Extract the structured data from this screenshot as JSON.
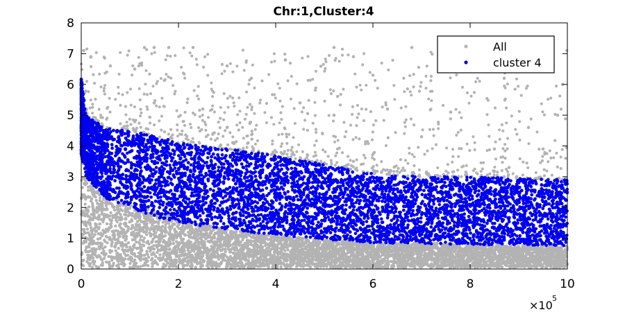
{
  "chart_data": {
    "type": "scatter",
    "title": "Chr:1,Cluster:4",
    "xlabel": "",
    "ylabel": "",
    "xlim": [
      0,
      1000000
    ],
    "ylim": [
      0,
      8
    ],
    "x_exponent_label": "×10",
    "x_exponent_power": "5",
    "x_ticks": [
      {
        "value": 0,
        "label": "0"
      },
      {
        "value": 200000,
        "label": "2"
      },
      {
        "value": 400000,
        "label": "4"
      },
      {
        "value": 600000,
        "label": "6"
      },
      {
        "value": 800000,
        "label": "8"
      },
      {
        "value": 1000000,
        "label": "10"
      }
    ],
    "y_ticks": [
      {
        "value": 0,
        "label": "0"
      },
      {
        "value": 1,
        "label": "1"
      },
      {
        "value": 2,
        "label": "2"
      },
      {
        "value": 3,
        "label": "3"
      },
      {
        "value": 4,
        "label": "4"
      },
      {
        "value": 5,
        "label": "5"
      },
      {
        "value": 6,
        "label": "6"
      },
      {
        "value": 7,
        "label": "7"
      },
      {
        "value": 8,
        "label": "8"
      }
    ],
    "grid": false,
    "legend_position": "top-right",
    "series": [
      {
        "name": "All",
        "color": "#b3b3b3",
        "description_points": [
          [
            5000,
            7.1
          ],
          [
            20000,
            6.9
          ],
          [
            60000,
            6.6
          ],
          [
            110000,
            6.5
          ],
          [
            130000,
            7.2
          ],
          [
            150000,
            7.2
          ],
          [
            180000,
            7.2
          ],
          [
            230000,
            7.2
          ],
          [
            300000,
            6.6
          ],
          [
            350000,
            6.2
          ],
          [
            420000,
            6.8
          ],
          [
            520000,
            7.2
          ],
          [
            560000,
            6.9
          ],
          [
            600000,
            6.3
          ],
          [
            680000,
            7.2
          ],
          [
            740000,
            7.2
          ],
          [
            800000,
            6.5
          ],
          [
            870000,
            6.2
          ],
          [
            990000,
            6.0
          ],
          [
            150000,
            5.4
          ],
          [
            250000,
            5.2
          ],
          [
            450000,
            5.4
          ],
          [
            520000,
            5.0
          ],
          [
            630000,
            5.2
          ],
          [
            760000,
            5.1
          ],
          [
            920000,
            4.6
          ],
          [
            980000,
            5.0
          ],
          [
            300000,
            4.6
          ],
          [
            700000,
            4.3
          ],
          [
            850000,
            3.9
          ],
          [
            950000,
            3.9
          ],
          [
            560000,
            3.5
          ],
          [
            880000,
            3.3
          ]
        ]
      },
      {
        "name": "cluster 4",
        "color": "#0000ee",
        "upper_edge": [
          [
            0,
            6.2
          ],
          [
            10000,
            5.0
          ],
          [
            50000,
            4.6
          ],
          [
            100000,
            4.5
          ],
          [
            160000,
            4.3
          ],
          [
            200000,
            4.1
          ],
          [
            300000,
            3.9
          ],
          [
            400000,
            3.7
          ],
          [
            500000,
            3.4
          ],
          [
            600000,
            3.1
          ],
          [
            700000,
            3.0
          ],
          [
            800000,
            3.0
          ],
          [
            900000,
            2.95
          ],
          [
            1000000,
            2.9
          ]
        ],
        "lower_edge": [
          [
            0,
            3.7
          ],
          [
            10000,
            3.0
          ],
          [
            50000,
            2.3
          ],
          [
            100000,
            2.0
          ],
          [
            150000,
            1.7
          ],
          [
            200000,
            1.5
          ],
          [
            300000,
            1.3
          ],
          [
            400000,
            1.1
          ],
          [
            500000,
            0.95
          ],
          [
            600000,
            0.85
          ],
          [
            700000,
            0.82
          ],
          [
            800000,
            0.8
          ],
          [
            900000,
            0.78
          ],
          [
            1000000,
            0.75
          ]
        ]
      }
    ],
    "gray_band": {
      "upper_edge": [
        [
          0,
          3.8
        ],
        [
          10000,
          3.0
        ],
        [
          50000,
          2.5
        ],
        [
          100000,
          2.1
        ],
        [
          150000,
          1.9
        ],
        [
          200000,
          1.6
        ],
        [
          300000,
          1.3
        ],
        [
          400000,
          1.1
        ],
        [
          500000,
          0.95
        ],
        [
          600000,
          0.9
        ],
        [
          700000,
          0.85
        ],
        [
          800000,
          0.8
        ],
        [
          900000,
          0.78
        ],
        [
          1000000,
          0.75
        ]
      ],
      "lower_edge": [
        [
          0,
          0.3
        ],
        [
          200000,
          0.3
        ],
        [
          500000,
          0.3
        ],
        [
          800000,
          0.3
        ],
        [
          1000000,
          0.3
        ]
      ]
    }
  },
  "legend": {
    "items": [
      {
        "label": "All",
        "color": "#b3b3b3"
      },
      {
        "label": "cluster 4",
        "color": "#0000ee"
      }
    ]
  }
}
